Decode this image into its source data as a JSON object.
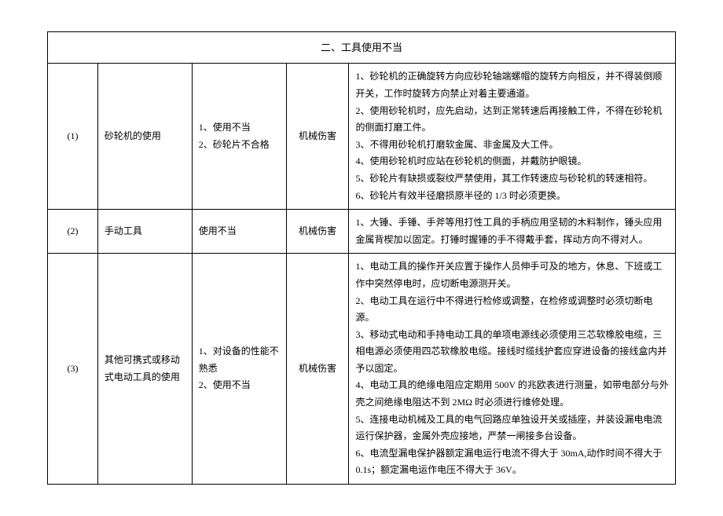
{
  "title": "二、工具使用不当",
  "columns": {
    "num_width": "8%",
    "item_width": "15%",
    "factor_width": "15%",
    "harm_width": "10%",
    "desc_width": "52%"
  },
  "rows": [
    {
      "num": "(1)",
      "item": "砂轮机的使用",
      "factors": "1、使用不当\n2、砂轮片不合格",
      "harm": "机械伤害",
      "desc": [
        "1、砂轮机的正确旋转方向应砂轮轴端螺帽的旋转方向相反，并不得装倒顺开关，工作时旋转方向禁止对着主要通道。",
        "2、使用砂轮机时，应先启动，达到正常转速后再接触工件，不得在砂轮机的侧面打磨工件。",
        "3、不得用砂轮机打磨软金属、非金属及大工件。",
        "4、使用砂轮机时应站在砂轮机的侧面，并戴防护眼镜。",
        "5、砂轮片有缺损或裂纹严禁使用，其工作转速应与砂轮机的转速相符。",
        "6、砂轮片有效半径磨损原半径的 1/3 时必须更换。"
      ]
    },
    {
      "num": "(2)",
      "item": "手动工具",
      "factors": "使用不当",
      "harm": "机械伤害",
      "desc": [
        "1、大锤、手锤、手斧等甩打性工具的手柄应用坚韧的木料制作，锤头应用金属背楔加以固定。打锤时握锤的手不得戴手套，挥动方向不得对人。"
      ]
    },
    {
      "num": "(3)",
      "item": "其他可携式或移动式电动工具的使用",
      "factors": "1、对设备的性能不熟悉\n2、使用不当",
      "harm": "机械伤害",
      "desc": [
        "1、电动工具的操作开关应置于操作人员伸手可及的地方，休息、下班或工作中突然停电时，应切断电源测开关。",
        "2、电动工具在运行中不得进行检修或调整，在检修或调整时必须切断电源。",
        "3、移动式电动和手持电动工具的单项电源线必须使用三芯软橡胶电缆，三相电源必须使用四芯软橡胶电缆。接线时缆线护套应穿进设备的接线盒内并予以固定。",
        "4、电动工具的绝缘电阻应定期用 500V 的兆欧表进行测量，如带电部分与外壳之间绝缘电阻达不到 2MΩ 时必须进行维修处理。",
        "5、连接电动机械及工具的电气回路应单独设开关或插座，并装设漏电电流运行保护器，金属外壳应接地，严禁一闸接多台设备。",
        "6、电流型漏电保护器额定漏电运行电流不得大于 30mA,动作时间不得大于 0.1s；额定漏电运作电压不得大于 36V。"
      ]
    }
  ]
}
